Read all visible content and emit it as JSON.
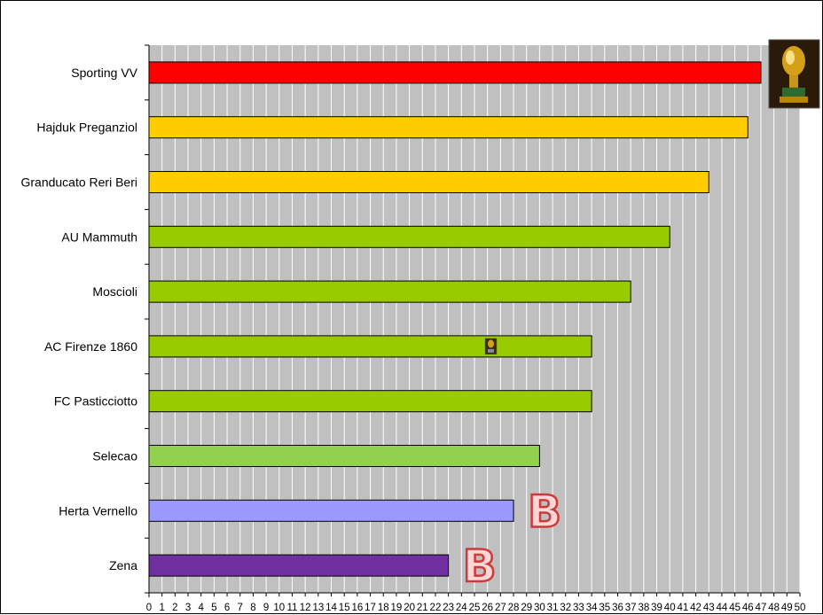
{
  "chart_data": {
    "type": "bar",
    "orientation": "horizontal",
    "categories": [
      "Sporting VV",
      "Hajduk Preganziol",
      "Granducato Reri Beri",
      "AU Mammuth",
      "Moscioli",
      "AC Firenze 1860",
      "FC Pasticciotto",
      "Selecao",
      "Herta Vernello",
      "Zena"
    ],
    "values": [
      47,
      46,
      43,
      40,
      37,
      34,
      34,
      30,
      28,
      23
    ],
    "bar_colors": [
      "#ff0000",
      "#ffcc00",
      "#ffcc00",
      "#99cc00",
      "#99cc00",
      "#99cc00",
      "#99cc00",
      "#92d050",
      "#9999ff",
      "#7030a0"
    ],
    "xlim": [
      0,
      50
    ],
    "xticks": [
      "0",
      "1",
      "2",
      "3",
      "4",
      "5",
      "6",
      "7",
      "8",
      "9",
      "10",
      "11",
      "12",
      "13",
      "14",
      "15",
      "16",
      "17",
      "18",
      "19",
      "20",
      "21",
      "22",
      "23",
      "24",
      "25",
      "26",
      "27",
      "28",
      "29",
      "30",
      "31",
      "32",
      "33",
      "34",
      "35",
      "36",
      "37",
      "38",
      "39",
      "40",
      "41",
      "42",
      "43",
      "44",
      "45",
      "46",
      "47",
      "48",
      "49",
      "50"
    ],
    "grid": "vertical",
    "plot_background": "#c0c0c0",
    "legend": "none",
    "annotations": [
      {
        "type": "trophy-icon",
        "category": "Sporting VV"
      },
      {
        "type": "small-trophy-icon",
        "category": "AC Firenze 1860"
      },
      {
        "type": "letter",
        "text": "B",
        "category": "Herta Vernello"
      },
      {
        "type": "letter",
        "text": "B",
        "category": "Zena"
      }
    ]
  }
}
